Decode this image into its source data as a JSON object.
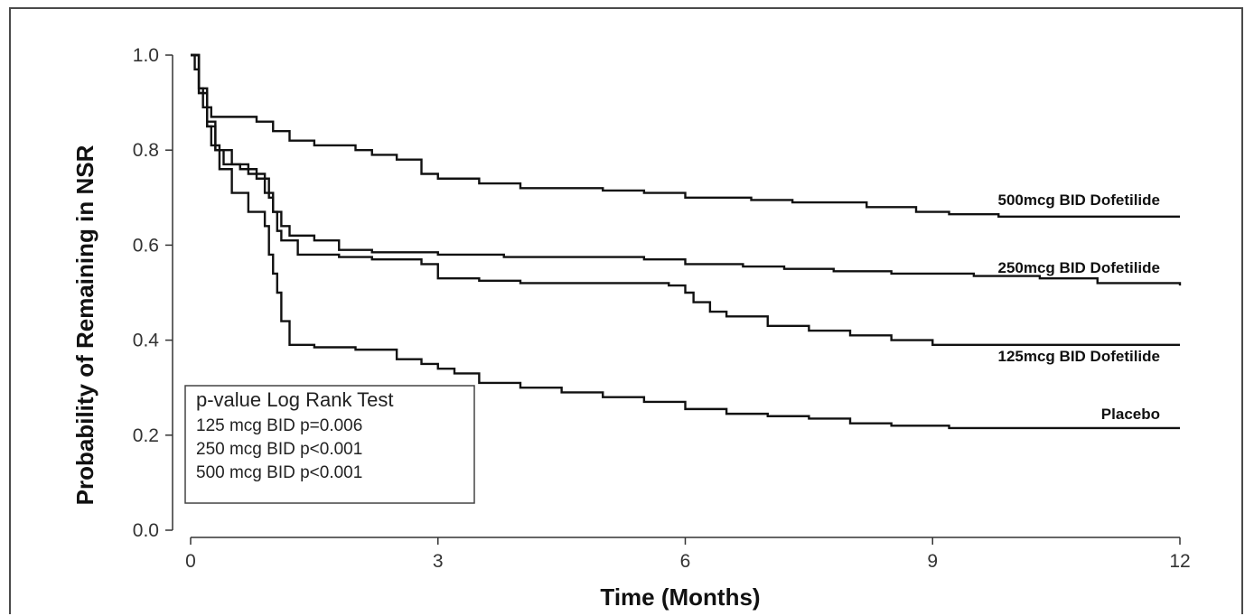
{
  "chart_data": {
    "type": "line",
    "title": "",
    "xlabel": "Time (Months)",
    "ylabel": "Probability of Remaining in NSR",
    "xlim": [
      0,
      12
    ],
    "ylim": [
      0,
      1
    ],
    "x_ticks": [
      "0",
      "3",
      "6",
      "9",
      "12"
    ],
    "y_ticks": [
      "0.0",
      "0.2",
      "0.4",
      "0.6",
      "0.8",
      "1.0"
    ],
    "grid": false,
    "series": [
      {
        "name": "500mcg BID Dofetilide",
        "points": [
          [
            0,
            1.0
          ],
          [
            0.05,
            0.97
          ],
          [
            0.1,
            0.93
          ],
          [
            0.15,
            0.89
          ],
          [
            0.25,
            0.87
          ],
          [
            0.5,
            0.87
          ],
          [
            0.8,
            0.86
          ],
          [
            1.0,
            0.84
          ],
          [
            1.2,
            0.82
          ],
          [
            1.5,
            0.81
          ],
          [
            2.0,
            0.8
          ],
          [
            2.2,
            0.79
          ],
          [
            2.5,
            0.78
          ],
          [
            2.8,
            0.75
          ],
          [
            3.0,
            0.74
          ],
          [
            3.5,
            0.73
          ],
          [
            4.0,
            0.72
          ],
          [
            5.0,
            0.715
          ],
          [
            5.5,
            0.71
          ],
          [
            6.0,
            0.7
          ],
          [
            6.8,
            0.695
          ],
          [
            7.3,
            0.69
          ],
          [
            8.2,
            0.68
          ],
          [
            8.8,
            0.67
          ],
          [
            9.2,
            0.665
          ],
          [
            9.8,
            0.66
          ],
          [
            10.5,
            0.66
          ],
          [
            11.0,
            0.66
          ],
          [
            12.0,
            0.66
          ]
        ]
      },
      {
        "name": "250mcg BID Dofetilide",
        "points": [
          [
            0,
            1.0
          ],
          [
            0.1,
            0.92
          ],
          [
            0.2,
            0.85
          ],
          [
            0.3,
            0.8
          ],
          [
            0.4,
            0.77
          ],
          [
            0.6,
            0.76
          ],
          [
            0.8,
            0.74
          ],
          [
            0.95,
            0.7
          ],
          [
            1.0,
            0.67
          ],
          [
            1.1,
            0.64
          ],
          [
            1.2,
            0.62
          ],
          [
            1.5,
            0.61
          ],
          [
            1.8,
            0.59
          ],
          [
            2.2,
            0.585
          ],
          [
            3.0,
            0.58
          ],
          [
            3.8,
            0.575
          ],
          [
            5.5,
            0.57
          ],
          [
            6.0,
            0.56
          ],
          [
            6.7,
            0.555
          ],
          [
            7.2,
            0.55
          ],
          [
            7.8,
            0.545
          ],
          [
            8.5,
            0.54
          ],
          [
            9.5,
            0.535
          ],
          [
            10.3,
            0.53
          ],
          [
            11.0,
            0.52
          ],
          [
            12.0,
            0.515
          ]
        ]
      },
      {
        "name": "125mcg BID Dofetilide",
        "points": [
          [
            0,
            1.0
          ],
          [
            0.1,
            0.93
          ],
          [
            0.2,
            0.86
          ],
          [
            0.3,
            0.8
          ],
          [
            0.5,
            0.77
          ],
          [
            0.7,
            0.75
          ],
          [
            0.9,
            0.71
          ],
          [
            1.0,
            0.67
          ],
          [
            1.05,
            0.63
          ],
          [
            1.1,
            0.61
          ],
          [
            1.3,
            0.58
          ],
          [
            1.8,
            0.575
          ],
          [
            2.2,
            0.57
          ],
          [
            2.8,
            0.56
          ],
          [
            3.0,
            0.53
          ],
          [
            3.5,
            0.525
          ],
          [
            4.0,
            0.52
          ],
          [
            5.0,
            0.52
          ],
          [
            5.8,
            0.515
          ],
          [
            6.0,
            0.5
          ],
          [
            6.1,
            0.48
          ],
          [
            6.3,
            0.46
          ],
          [
            6.5,
            0.45
          ],
          [
            7.0,
            0.43
          ],
          [
            7.5,
            0.42
          ],
          [
            8.0,
            0.41
          ],
          [
            8.5,
            0.4
          ],
          [
            9.0,
            0.39
          ],
          [
            9.5,
            0.39
          ],
          [
            12.0,
            0.39
          ]
        ]
      },
      {
        "name": "Placebo",
        "points": [
          [
            0,
            1.0
          ],
          [
            0.1,
            0.92
          ],
          [
            0.2,
            0.85
          ],
          [
            0.25,
            0.81
          ],
          [
            0.35,
            0.76
          ],
          [
            0.5,
            0.71
          ],
          [
            0.7,
            0.67
          ],
          [
            0.9,
            0.64
          ],
          [
            0.95,
            0.58
          ],
          [
            1.0,
            0.54
          ],
          [
            1.05,
            0.5
          ],
          [
            1.1,
            0.44
          ],
          [
            1.2,
            0.39
          ],
          [
            1.5,
            0.385
          ],
          [
            2.0,
            0.38
          ],
          [
            2.5,
            0.36
          ],
          [
            2.8,
            0.35
          ],
          [
            3.0,
            0.34
          ],
          [
            3.2,
            0.33
          ],
          [
            3.5,
            0.31
          ],
          [
            4.0,
            0.3
          ],
          [
            4.5,
            0.29
          ],
          [
            5.0,
            0.28
          ],
          [
            5.5,
            0.27
          ],
          [
            6.0,
            0.255
          ],
          [
            6.5,
            0.245
          ],
          [
            7.0,
            0.24
          ],
          [
            7.5,
            0.235
          ],
          [
            8.0,
            0.225
          ],
          [
            8.5,
            0.22
          ],
          [
            9.2,
            0.215
          ],
          [
            10.0,
            0.215
          ],
          [
            12.0,
            0.215
          ]
        ]
      }
    ],
    "series_label_positions": [
      "right",
      "right",
      "right",
      "right"
    ],
    "legend": {
      "title": "p-value Log Rank Test",
      "entries": [
        "125  mcg BID p=0.006",
        "250  mcg BID p<0.001",
        "500  mcg BID p<0.001"
      ],
      "placement": "bottom-left"
    }
  }
}
